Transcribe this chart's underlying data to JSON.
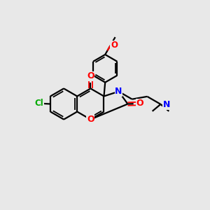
{
  "background_color": "#e8e8e8",
  "bond_color": "#000000",
  "O_color": "#ff0000",
  "N_color": "#0000ff",
  "Cl_color": "#00aa00",
  "figsize": [
    3.0,
    3.0
  ],
  "dpi": 100,
  "xlim": [
    0,
    10
  ],
  "ylim": [
    0,
    10
  ]
}
